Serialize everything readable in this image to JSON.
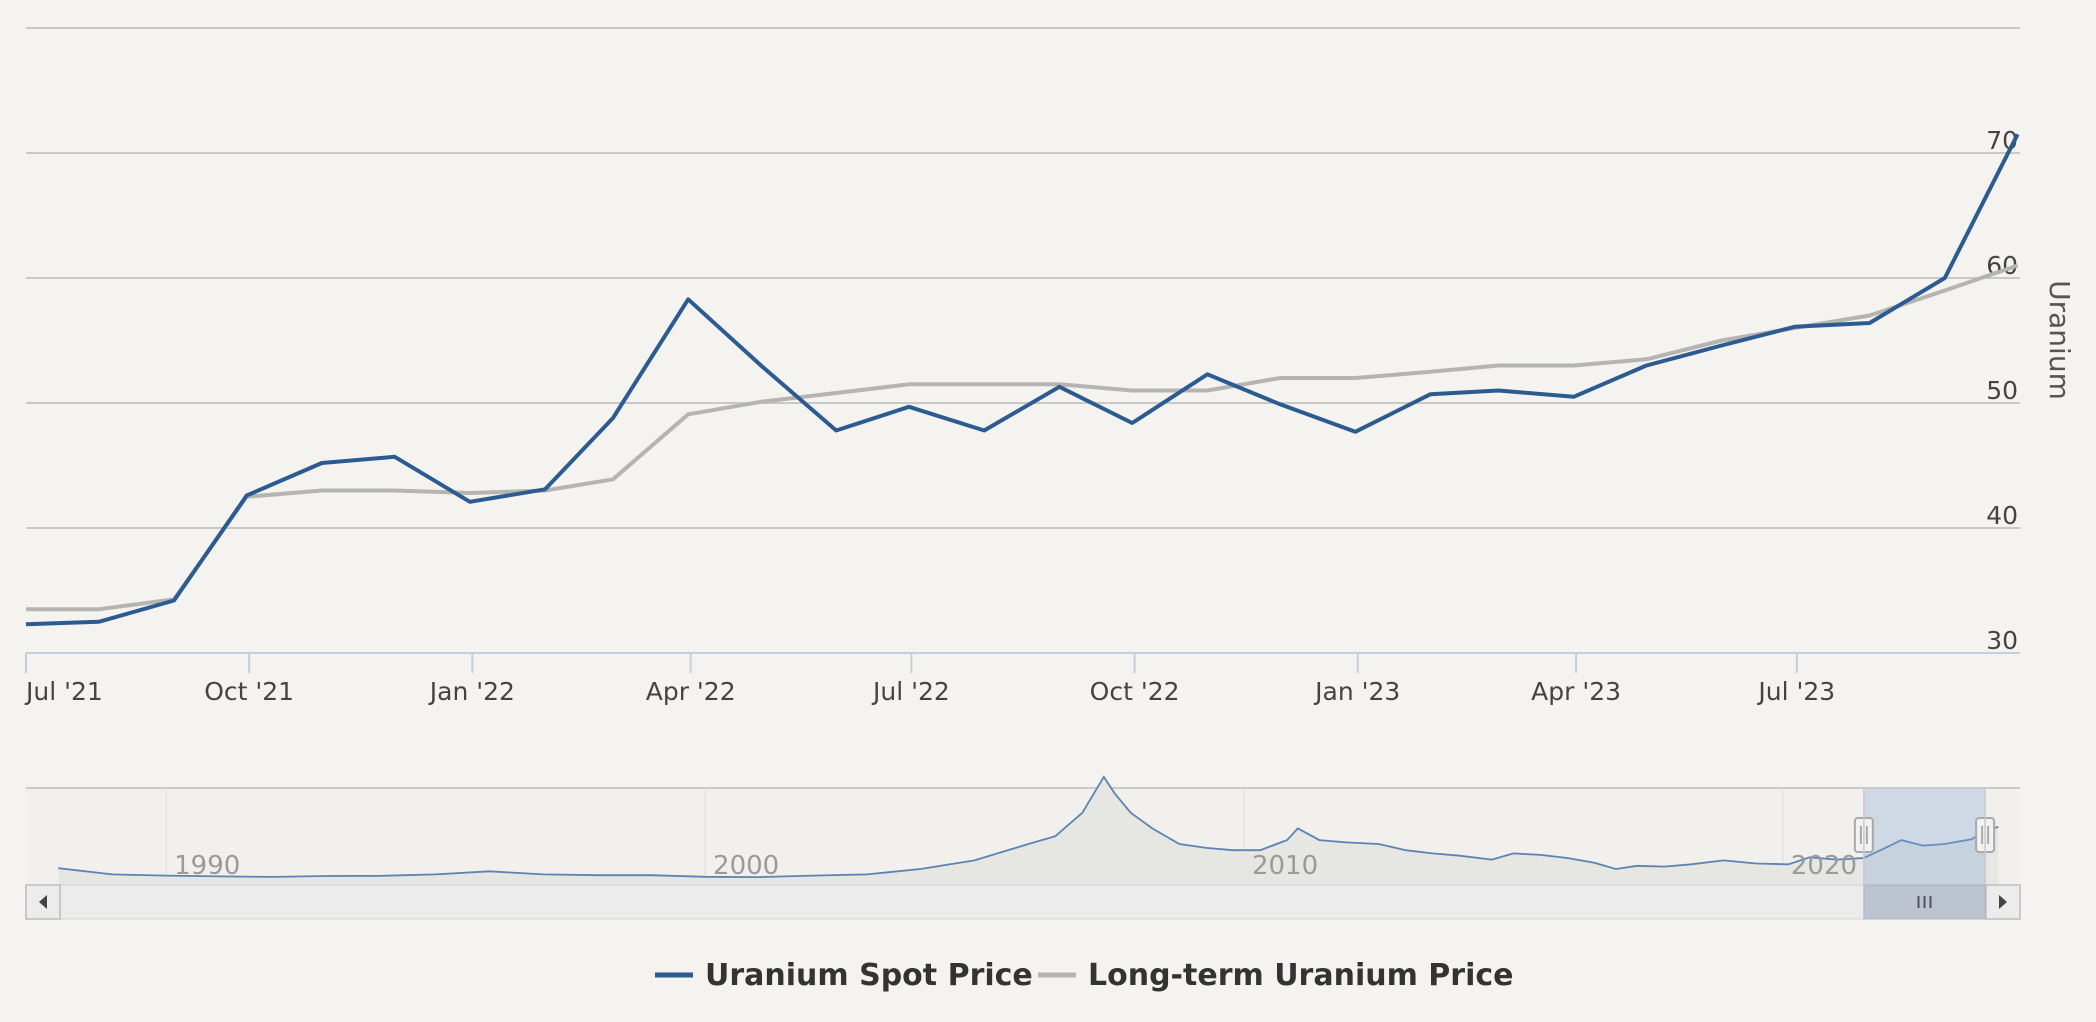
{
  "chart_data": {
    "type": "line",
    "ylabel": "Uranium",
    "ylim": [
      30,
      80
    ],
    "y_ticks": [
      30,
      40,
      50,
      60,
      70
    ],
    "x_range": [
      "2021-07-01",
      "2023-10-01"
    ],
    "x_ticks": [
      {
        "date": "2021-07-01",
        "label": "Jul '21"
      },
      {
        "date": "2021-10-01",
        "label": "Oct '21"
      },
      {
        "date": "2022-01-01",
        "label": "Jan '22"
      },
      {
        "date": "2022-04-01",
        "label": "Apr '22"
      },
      {
        "date": "2022-07-01",
        "label": "Jul '22"
      },
      {
        "date": "2022-10-01",
        "label": "Oct '22"
      },
      {
        "date": "2023-01-01",
        "label": "Jan '23"
      },
      {
        "date": "2023-04-01",
        "label": "Apr '23"
      },
      {
        "date": "2023-07-01",
        "label": "Jul '23"
      }
    ],
    "grid": true,
    "legend_position": "bottom-center",
    "series": [
      {
        "name": "Uranium Spot Price",
        "color": "#2c5b91",
        "points": [
          [
            "2021-07-01",
            32.3
          ],
          [
            "2021-07-31",
            32.5
          ],
          [
            "2021-08-31",
            34.2
          ],
          [
            "2021-09-30",
            42.6
          ],
          [
            "2021-10-31",
            45.2
          ],
          [
            "2021-11-30",
            45.7
          ],
          [
            "2021-12-31",
            42.1
          ],
          [
            "2022-01-31",
            43.1
          ],
          [
            "2022-02-28",
            48.8
          ],
          [
            "2022-03-31",
            58.3
          ],
          [
            "2022-04-30",
            53.0
          ],
          [
            "2022-05-31",
            47.8
          ],
          [
            "2022-06-30",
            49.7
          ],
          [
            "2022-07-31",
            47.8
          ],
          [
            "2022-08-31",
            51.3
          ],
          [
            "2022-09-30",
            48.4
          ],
          [
            "2022-10-31",
            52.3
          ],
          [
            "2022-11-30",
            49.9
          ],
          [
            "2022-12-31",
            47.7
          ],
          [
            "2023-01-31",
            50.7
          ],
          [
            "2023-02-28",
            51.0
          ],
          [
            "2023-03-31",
            50.5
          ],
          [
            "2023-04-30",
            53.0
          ],
          [
            "2023-05-31",
            54.6
          ],
          [
            "2023-06-30",
            56.1
          ],
          [
            "2023-07-31",
            56.4
          ],
          [
            "2023-08-31",
            60.0
          ],
          [
            "2023-09-30",
            71.5
          ]
        ]
      },
      {
        "name": "Long-term Uranium Price",
        "color": "#b4b4b2",
        "points": [
          [
            "2021-07-01",
            33.5
          ],
          [
            "2021-07-31",
            33.5
          ],
          [
            "2021-08-31",
            34.3
          ],
          [
            "2021-09-30",
            42.5
          ],
          [
            "2021-10-31",
            43.0
          ],
          [
            "2021-11-30",
            43.0
          ],
          [
            "2021-12-31",
            42.8
          ],
          [
            "2022-01-31",
            43.0
          ],
          [
            "2022-02-28",
            43.9
          ],
          [
            "2022-03-31",
            49.1
          ],
          [
            "2022-04-30",
            50.1
          ],
          [
            "2022-05-31",
            50.8
          ],
          [
            "2022-06-30",
            51.5
          ],
          [
            "2022-07-31",
            51.5
          ],
          [
            "2022-08-31",
            51.5
          ],
          [
            "2022-09-30",
            51.0
          ],
          [
            "2022-10-31",
            51.0
          ],
          [
            "2022-11-30",
            52.0
          ],
          [
            "2022-12-31",
            52.0
          ],
          [
            "2023-01-31",
            52.5
          ],
          [
            "2023-02-28",
            53.0
          ],
          [
            "2023-03-31",
            53.0
          ],
          [
            "2023-04-30",
            53.5
          ],
          [
            "2023-05-31",
            55.0
          ],
          [
            "2023-06-30",
            56.0
          ],
          [
            "2023-07-31",
            57.0
          ],
          [
            "2023-08-31",
            59.0
          ],
          [
            "2023-09-30",
            61.0
          ]
        ]
      }
    ]
  },
  "navigator": {
    "labels": [
      {
        "year": 1990,
        "label": "1990"
      },
      {
        "year": 2000,
        "label": "2000"
      },
      {
        "year": 2010,
        "label": "2010"
      },
      {
        "year": 2020,
        "label": "2020"
      }
    ],
    "year_range": [
      1987.4,
      2024.4
    ],
    "selected_range": [
      "2021-07-01",
      "2023-10-01"
    ],
    "spot_history": [
      [
        1988,
        19
      ],
      [
        1989,
        11
      ],
      [
        1990,
        9.5
      ],
      [
        1991,
        8.5
      ],
      [
        1992,
        7.8
      ],
      [
        1993,
        9
      ],
      [
        1994,
        9.2
      ],
      [
        1995,
        11
      ],
      [
        1996,
        15
      ],
      [
        1997,
        11
      ],
      [
        1998,
        10
      ],
      [
        1999,
        10
      ],
      [
        2000,
        8
      ],
      [
        2001,
        7.5
      ],
      [
        2002,
        9.5
      ],
      [
        2003,
        11
      ],
      [
        2004,
        18
      ],
      [
        2005,
        29
      ],
      [
        2006,
        50
      ],
      [
        2006.5,
        60
      ],
      [
        2007,
        90
      ],
      [
        2007.4,
        136
      ],
      [
        2007.6,
        115
      ],
      [
        2007.9,
        90
      ],
      [
        2008.3,
        70
      ],
      [
        2008.8,
        50
      ],
      [
        2009.3,
        45
      ],
      [
        2009.8,
        42
      ],
      [
        2010.3,
        42
      ],
      [
        2010.8,
        55
      ],
      [
        2011,
        70
      ],
      [
        2011.4,
        55
      ],
      [
        2011.9,
        52
      ],
      [
        2012.5,
        50
      ],
      [
        2013,
        42
      ],
      [
        2013.5,
        38
      ],
      [
        2014,
        35
      ],
      [
        2014.6,
        30
      ],
      [
        2015,
        38
      ],
      [
        2015.5,
        36
      ],
      [
        2016,
        32
      ],
      [
        2016.5,
        26
      ],
      [
        2016.9,
        18
      ],
      [
        2017.3,
        22
      ],
      [
        2017.8,
        21
      ],
      [
        2018.3,
        24
      ],
      [
        2018.9,
        29
      ],
      [
        2019.5,
        25
      ],
      [
        2020.1,
        24
      ],
      [
        2020.5,
        33
      ],
      [
        2021,
        30
      ],
      [
        2021.5,
        32
      ],
      [
        2021.9,
        45
      ],
      [
        2022.2,
        55
      ],
      [
        2022.6,
        48
      ],
      [
        2023,
        50
      ],
      [
        2023.5,
        56
      ],
      [
        2023.8,
        68
      ],
      [
        2024.0,
        72
      ]
    ]
  },
  "legend": [
    {
      "label": "Uranium Spot Price",
      "color": "#2c5b91"
    },
    {
      "label": "Long-term Uranium Price",
      "color": "#b4b4b2"
    }
  ]
}
